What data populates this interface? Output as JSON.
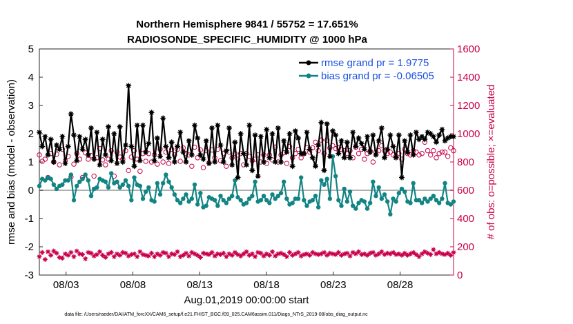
{
  "chart_data": {
    "type": "line",
    "title": "Northern Hemisphere 9841 / 55752 = 17.651%",
    "subtitle": "RADIOSONDE_SPECIFIC_HUMIDITY @ 1000 hPa",
    "xlabel": "Aug.01,2019 00:00:00 start",
    "ylabel": "rmse and bias (model - observation)",
    "ylabel_right": "# of obs: o=possible; ×=evaluated",
    "x_tick_labels": [
      "08/03",
      "08/08",
      "08/13",
      "08/18",
      "08/23",
      "08/28"
    ],
    "x_ticks_day": [
      3,
      8,
      13,
      18,
      23,
      28
    ],
    "xlim_day": [
      1.0,
      32.0
    ],
    "ylim": [
      -3,
      5
    ],
    "y_ticks": [
      "-3",
      "-2",
      "-1",
      "0",
      "1",
      "2",
      "3",
      "4",
      "5"
    ],
    "ylim_right": [
      0,
      1600
    ],
    "y_ticks_right": [
      "0",
      "200",
      "400",
      "600",
      "800",
      "1000",
      "1200",
      "1400",
      "1600"
    ],
    "legend_position": "top-right",
    "series": [
      {
        "name": "rmse",
        "legend_label": "rmse grand pr = 1.9775",
        "color": "#000000",
        "marker": "asterisk",
        "axis": "left",
        "values": [
          2.05,
          1.55,
          1.9,
          1.25,
          1.8,
          1.0,
          1.6,
          1.45,
          1.9,
          0.95,
          1.55,
          2.7,
          1.95,
          1.05,
          1.9,
          1.45,
          1.8,
          1.25,
          2.2,
          1.1,
          2.05,
          0.9,
          1.8,
          1.25,
          2.25,
          1.05,
          2.0,
          0.95,
          2.25,
          1.0,
          1.6,
          3.7,
          1.55,
          0.85,
          2.3,
          1.05,
          2.3,
          1.35,
          1.65,
          2.75,
          1.05,
          1.85,
          1.2,
          2.55,
          1.55,
          1.15,
          1.7,
          1.0,
          1.55,
          2.05,
          1.35,
          1.0,
          1.75,
          1.25,
          2.3,
          1.85,
          1.25,
          1.1,
          1.75,
          0.95,
          2.2,
          1.0,
          2.3,
          1.6,
          1.0,
          1.4,
          2.2,
          0.9,
          1.7,
          0.45,
          2.0,
          1.3,
          0.9,
          2.3,
          0.7,
          1.95,
          0.5,
          1.9,
          1.0,
          2.15,
          1.15,
          2.0,
          1.0,
          2.2,
          1.0,
          1.75,
          1.35,
          2.0,
          0.85,
          2.1,
          1.85,
          1.3,
          1.3,
          2.05,
          1.45,
          1.15,
          0.85,
          1.6,
          2.4,
          0.7,
          2.35,
          1.2,
          2.1,
          1.95,
          1.3,
          1.75,
          1.15,
          1.7,
          1.15,
          2.05,
          1.55,
          1.85,
          1.65,
          1.45,
          1.9,
          1.35,
          1.95,
          1.25,
          1.75,
          2.2,
          1.15,
          1.45,
          1.95,
          1.55,
          1.15,
          1.95,
          0.45,
          1.75,
          1.35,
          1.95,
          1.25,
          2.05,
          1.8,
          1.9,
          1.8,
          2.05,
          2.0,
          1.9,
          1.7,
          1.95,
          2.15,
          1.75,
          1.85,
          1.9,
          1.9
        ]
      },
      {
        "name": "bias",
        "legend_label": "bias grand pr = -0.06505",
        "color": "#128484",
        "marker": "dot",
        "axis": "left",
        "values": [
          0.15,
          0.4,
          0.35,
          0.45,
          0.4,
          0.2,
          0.05,
          0.15,
          0.2,
          0.35,
          0.35,
          0.55,
          -0.35,
          0.15,
          0.3,
          0.4,
          0.55,
          0.35,
          -0.2,
          0.05,
          0.1,
          0.4,
          0.35,
          0.3,
          0.1,
          0.6,
          0.25,
          0.3,
          0.1,
          0.2,
          0.35,
          0.15,
          -0.35,
          0.45,
          0.2,
          0.15,
          -0.3,
          -0.05,
          0.1,
          -0.35,
          -0.4,
          0.25,
          -0.15,
          0.25,
          0.55,
          0.3,
          0.1,
          -0.15,
          -0.35,
          -0.45,
          -0.3,
          -0.15,
          -0.4,
          -0.3,
          0.2,
          -0.5,
          -0.1,
          -0.6,
          -0.55,
          -0.25,
          -0.3,
          -0.35,
          -0.55,
          -0.2,
          -0.35,
          -0.45,
          -0.3,
          -0.2,
          0.35,
          -0.25,
          -0.35,
          -0.5,
          -0.45,
          -0.3,
          -0.2,
          0.3,
          -0.4,
          -0.35,
          -0.2,
          -0.35,
          -0.45,
          -0.15,
          -0.3,
          -0.2,
          -0.1,
          0.3,
          -0.3,
          -0.5,
          -0.45,
          -0.3,
          -0.3,
          0.45,
          -0.35,
          -0.55,
          -0.4,
          -0.35,
          -0.2,
          -0.6,
          0.35,
          0.2,
          0.4,
          -0.3,
          1.2,
          0.5,
          -0.35,
          -0.55,
          0.05,
          -0.4,
          -0.05,
          -0.55,
          -0.65,
          -0.45,
          -0.35,
          -0.4,
          -0.65,
          -0.45,
          0.3,
          -0.2,
          0.1,
          -0.3,
          -0.15,
          -0.4,
          -0.85,
          -0.3,
          -0.4,
          -0.1,
          0.05,
          -0.05,
          -0.4,
          -0.45,
          0.25,
          -0.35,
          -0.35,
          -0.45,
          -0.3,
          -0.4,
          -0.3,
          -0.2,
          -0.35,
          -0.45,
          -0.3,
          0.25,
          -0.45,
          -0.5,
          -0.4
        ]
      },
      {
        "name": "possible",
        "legend_label": "o=possible",
        "color": "#c8004a",
        "marker": "circle-open",
        "axis": "right",
        "values": [
          850,
          805,
          820,
          690,
          860,
          800,
          855,
          780,
          890,
          810,
          840,
          695,
          785,
          860,
          820,
          690,
          865,
          820,
          845,
          700,
          830,
          895,
          815,
          780,
          820,
          880,
          700,
          870,
          835,
          820,
          880,
          740,
          835,
          880,
          820,
          735,
          860,
          805,
          860,
          800,
          850,
          785,
          890,
          800,
          870,
          790,
          890,
          850,
          890,
          805,
          900,
          860,
          850,
          770,
          905,
          830,
          885,
          760,
          880,
          795,
          885,
          830,
          890,
          810,
          860,
          770,
          870,
          830,
          860,
          820,
          860,
          780,
          860,
          840,
          810,
          820,
          850,
          800,
          850,
          790,
          850,
          815,
          905,
          800,
          850,
          865,
          790,
          910,
          830,
          860,
          890,
          830,
          860,
          900,
          870,
          900,
          940,
          880,
          955,
          860,
          955,
          900,
          915,
          895,
          900,
          890,
          880,
          860,
          880,
          830,
          905,
          860,
          890,
          820,
          860,
          880,
          800,
          870,
          880,
          915,
          880,
          860,
          870,
          850,
          840,
          860,
          820,
          890,
          860,
          850,
          880,
          870,
          850,
          860,
          940,
          880,
          850,
          880,
          830,
          860,
          870,
          870,
          840,
          900,
          880
        ]
      },
      {
        "name": "evaluated",
        "legend_label": "×=evaluated",
        "color": "#c8004a",
        "marker": "asterisk",
        "axis": "right",
        "values": [
          130,
          160,
          110,
          165,
          140,
          170,
          155,
          125,
          120,
          150,
          140,
          160,
          130,
          170,
          150,
          145,
          115,
          160,
          155,
          135,
          145,
          165,
          140,
          125,
          150,
          160,
          130,
          150,
          140,
          160,
          155,
          135,
          145,
          150,
          130,
          165,
          145,
          140,
          135,
          155,
          130,
          150,
          140,
          160,
          155,
          130,
          150,
          145,
          165,
          130,
          140,
          155,
          135,
          160,
          150,
          140,
          125,
          155,
          150,
          145,
          160,
          135,
          150,
          145,
          155,
          130,
          150,
          140,
          160,
          145,
          135,
          150,
          165,
          140,
          150,
          130,
          160,
          155,
          135,
          150,
          140,
          165,
          135,
          150,
          155,
          145,
          130,
          160,
          140,
          150,
          160,
          135,
          145,
          150,
          140,
          160,
          150,
          145,
          150,
          160,
          140,
          155,
          150,
          145,
          160,
          140,
          150,
          155,
          135,
          160,
          150,
          165,
          145,
          150,
          140,
          155,
          160,
          140,
          150,
          165,
          145,
          155,
          150,
          160,
          145,
          150,
          140,
          155,
          140,
          150,
          160,
          145,
          130,
          150,
          165,
          155,
          145,
          180,
          150,
          160,
          150,
          145,
          155,
          140,
          160
        ]
      }
    ]
  },
  "footer": {
    "data_file": "data file: /Users/raeder/DAI/ATM_forcXX/CAM6_setup/f.e21.FHIST_BGC.f09_025.CAM6assim.011/Diags_NTrS_2019-08/obs_diag_output.nc"
  }
}
